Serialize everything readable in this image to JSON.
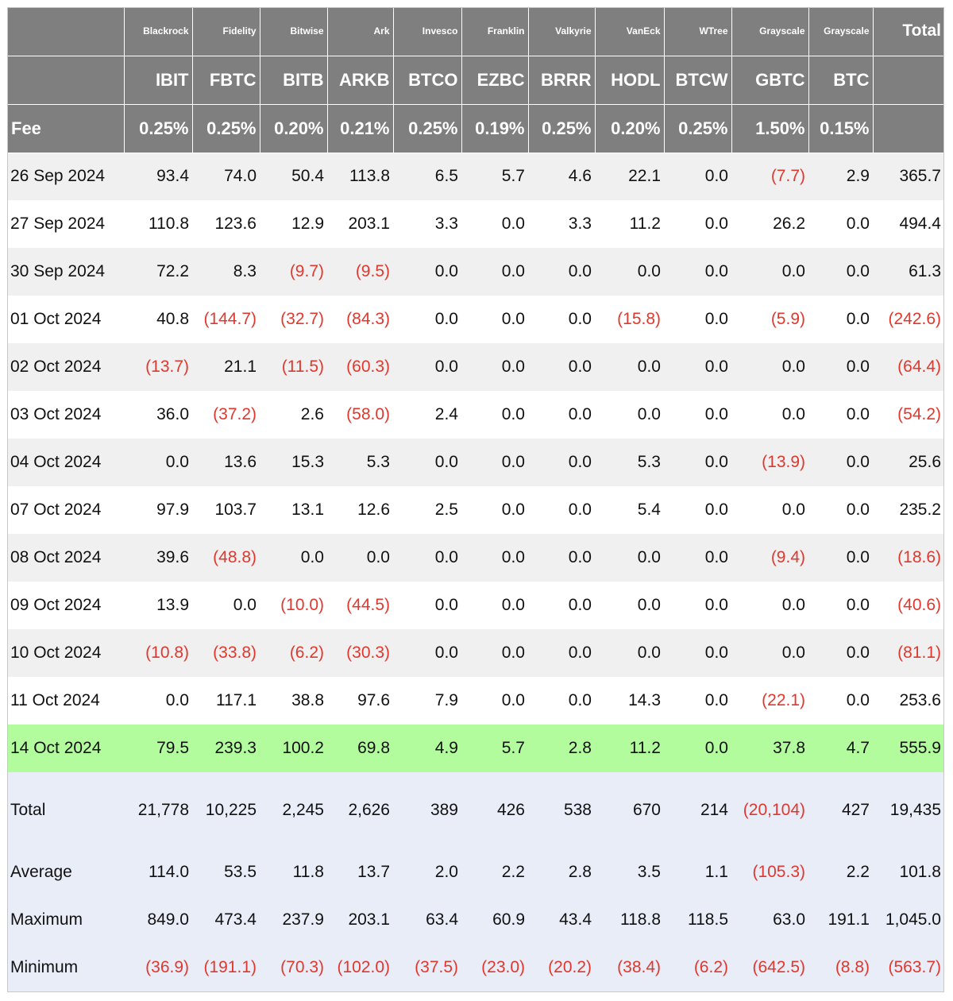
{
  "sponsors": [
    "Blackrock",
    "Fidelity",
    "Bitwise",
    "Ark",
    "Invesco",
    "Franklin",
    "Valkyrie",
    "VanEck",
    "WTree",
    "Grayscale",
    "Grayscale"
  ],
  "total_header": "Total",
  "tickers": [
    "IBIT",
    "FBTC",
    "BITB",
    "ARKB",
    "BTCO",
    "EZBC",
    "BRRR",
    "HODL",
    "BTCW",
    "GBTC",
    "BTC"
  ],
  "fee_label": "Fee",
  "fees": [
    "0.25%",
    "0.25%",
    "0.20%",
    "0.21%",
    "0.25%",
    "0.19%",
    "0.25%",
    "0.20%",
    "0.25%",
    "1.50%",
    "0.15%"
  ],
  "rows": [
    {
      "date": "26 Sep 2024",
      "values": [
        "93.4",
        "74.0",
        "50.4",
        "113.8",
        "6.5",
        "5.7",
        "4.6",
        "22.1",
        "0.0",
        "(7.7)",
        "2.9"
      ],
      "total": "365.7"
    },
    {
      "date": "27 Sep 2024",
      "values": [
        "110.8",
        "123.6",
        "12.9",
        "203.1",
        "3.3",
        "0.0",
        "3.3",
        "11.2",
        "0.0",
        "26.2",
        "0.0"
      ],
      "total": "494.4"
    },
    {
      "date": "30 Sep 2024",
      "values": [
        "72.2",
        "8.3",
        "(9.7)",
        "(9.5)",
        "0.0",
        "0.0",
        "0.0",
        "0.0",
        "0.0",
        "0.0",
        "0.0"
      ],
      "total": "61.3"
    },
    {
      "date": "01 Oct 2024",
      "values": [
        "40.8",
        "(144.7)",
        "(32.7)",
        "(84.3)",
        "0.0",
        "0.0",
        "0.0",
        "(15.8)",
        "0.0",
        "(5.9)",
        "0.0"
      ],
      "total": "(242.6)"
    },
    {
      "date": "02 Oct 2024",
      "values": [
        "(13.7)",
        "21.1",
        "(11.5)",
        "(60.3)",
        "0.0",
        "0.0",
        "0.0",
        "0.0",
        "0.0",
        "0.0",
        "0.0"
      ],
      "total": "(64.4)"
    },
    {
      "date": "03 Oct 2024",
      "values": [
        "36.0",
        "(37.2)",
        "2.6",
        "(58.0)",
        "2.4",
        "0.0",
        "0.0",
        "0.0",
        "0.0",
        "0.0",
        "0.0"
      ],
      "total": "(54.2)"
    },
    {
      "date": "04 Oct 2024",
      "values": [
        "0.0",
        "13.6",
        "15.3",
        "5.3",
        "0.0",
        "0.0",
        "0.0",
        "5.3",
        "0.0",
        "(13.9)",
        "0.0"
      ],
      "total": "25.6"
    },
    {
      "date": "07 Oct 2024",
      "values": [
        "97.9",
        "103.7",
        "13.1",
        "12.6",
        "2.5",
        "0.0",
        "0.0",
        "5.4",
        "0.0",
        "0.0",
        "0.0"
      ],
      "total": "235.2"
    },
    {
      "date": "08 Oct 2024",
      "values": [
        "39.6",
        "(48.8)",
        "0.0",
        "0.0",
        "0.0",
        "0.0",
        "0.0",
        "0.0",
        "0.0",
        "(9.4)",
        "0.0"
      ],
      "total": "(18.6)"
    },
    {
      "date": "09 Oct 2024",
      "values": [
        "13.9",
        "0.0",
        "(10.0)",
        "(44.5)",
        "0.0",
        "0.0",
        "0.0",
        "0.0",
        "0.0",
        "0.0",
        "0.0"
      ],
      "total": "(40.6)"
    },
    {
      "date": "10 Oct 2024",
      "values": [
        "(10.8)",
        "(33.8)",
        "(6.2)",
        "(30.3)",
        "0.0",
        "0.0",
        "0.0",
        "0.0",
        "0.0",
        "0.0",
        "0.0"
      ],
      "total": "(81.1)"
    },
    {
      "date": "11 Oct 2024",
      "values": [
        "0.0",
        "117.1",
        "38.8",
        "97.6",
        "7.9",
        "0.0",
        "0.0",
        "14.3",
        "0.0",
        "(22.1)",
        "0.0"
      ],
      "total": "253.6"
    },
    {
      "date": "14 Oct 2024",
      "values": [
        "79.5",
        "239.3",
        "100.2",
        "69.8",
        "4.9",
        "5.7",
        "2.8",
        "11.2",
        "0.0",
        "37.8",
        "4.7"
      ],
      "total": "555.9",
      "highlight": true
    }
  ],
  "stats": [
    {
      "label": "Total",
      "values": [
        "21,778",
        "10,225",
        "2,245",
        "2,626",
        "389",
        "426",
        "538",
        "670",
        "214",
        "(20,104)",
        "427"
      ],
      "total": "19,435"
    },
    {
      "label": "Average",
      "values": [
        "114.0",
        "53.5",
        "11.8",
        "13.7",
        "2.0",
        "2.2",
        "2.8",
        "3.5",
        "1.1",
        "(105.3)",
        "2.2"
      ],
      "total": "101.8"
    },
    {
      "label": "Maximum",
      "values": [
        "849.0",
        "473.4",
        "237.9",
        "203.1",
        "63.4",
        "60.9",
        "43.4",
        "118.8",
        "118.5",
        "63.0",
        "191.1"
      ],
      "total": "1,045.0"
    },
    {
      "label": "Minimum",
      "values": [
        "(36.9)",
        "(191.1)",
        "(70.3)",
        "(102.0)",
        "(37.5)",
        "(23.0)",
        "(20.2)",
        "(38.4)",
        "(6.2)",
        "(642.5)",
        "(8.8)"
      ],
      "total": "(563.7)"
    }
  ],
  "colors": {
    "header_bg": "#7f7f7f",
    "negative": "#e0382e",
    "highlight_row": "#b2fc9e",
    "stats_bg": "#e9edf8",
    "odd_row": "#f0f0f0"
  }
}
